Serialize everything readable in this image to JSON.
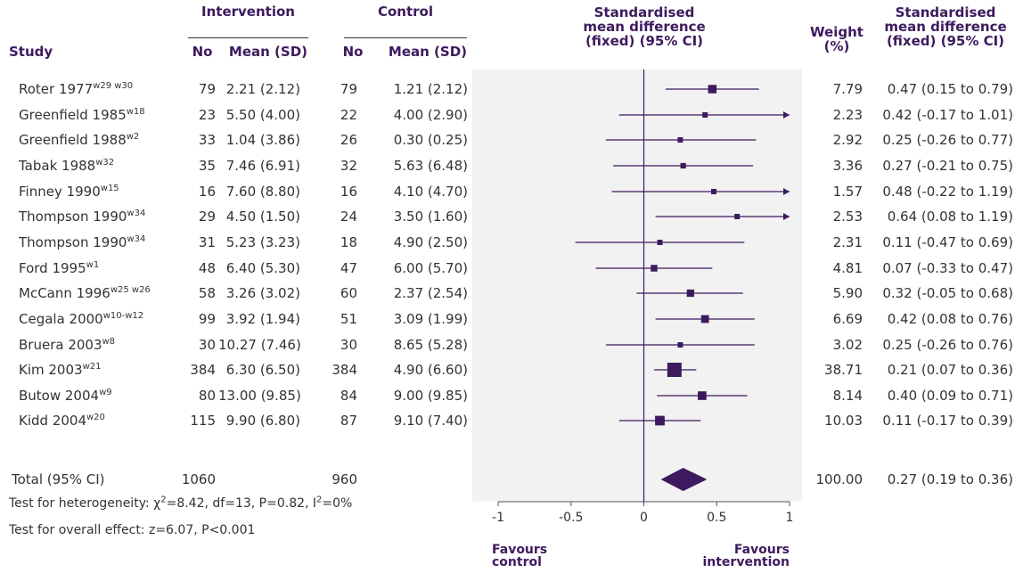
{
  "headers": {
    "intervention": "Intervention",
    "control": "Control",
    "study": "Study",
    "no": "No",
    "mean_sd": "Mean (SD)",
    "smd_plot": [
      "Standardised",
      "mean difference",
      "(fixed) (95% CI)"
    ],
    "weight": [
      "Weight",
      "(%)"
    ],
    "smd_col": [
      "Standardised",
      "mean difference",
      "(fixed) (95% CI)"
    ]
  },
  "chart_data": {
    "type": "forest",
    "xlim": [
      -1,
      1
    ],
    "xticks": [
      "-1",
      "-0.5",
      "0",
      "0.5",
      "1"
    ],
    "favours_left": [
      "Favours",
      "control"
    ],
    "favours_right": [
      "Favours",
      "intervention"
    ],
    "studies": [
      {
        "name": "Roter 1977",
        "sup": "w29 w30",
        "int_n": "79",
        "int_mean": "2.21 (2.12)",
        "ctl_n": "79",
        "ctl_mean": "1.21 (2.12)",
        "smd": 0.47,
        "lo": 0.15,
        "hi": 0.79,
        "weight": "7.79",
        "ci_text": "0.47 (0.15 to 0.79)",
        "w": 7.79
      },
      {
        "name": "Greenfield 1985",
        "sup": "w18",
        "int_n": "23",
        "int_mean": "5.50 (4.00)",
        "ctl_n": "22",
        "ctl_mean": "4.00 (2.90)",
        "smd": 0.42,
        "lo": -0.17,
        "hi": 1.01,
        "weight": "2.23",
        "ci_text": "0.42 (-0.17 to 1.01)",
        "w": 2.23
      },
      {
        "name": "Greenfield 1988",
        "sup": "w2",
        "int_n": "33",
        "int_mean": "1.04 (3.86)",
        "ctl_n": "26",
        "ctl_mean": "0.30 (0.25)",
        "smd": 0.25,
        "lo": -0.26,
        "hi": 0.77,
        "weight": "2.92",
        "ci_text": "0.25 (-0.26 to 0.77)",
        "w": 2.92
      },
      {
        "name": "Tabak 1988",
        "sup": "w32",
        "int_n": "35",
        "int_mean": "7.46 (6.91)",
        "ctl_n": "32",
        "ctl_mean": "5.63 (6.48)",
        "smd": 0.27,
        "lo": -0.21,
        "hi": 0.75,
        "weight": "3.36",
        "ci_text": "0.27 (-0.21 to 0.75)",
        "w": 3.36
      },
      {
        "name": "Finney 1990",
        "sup": "w15",
        "int_n": "16",
        "int_mean": "7.60 (8.80)",
        "ctl_n": "16",
        "ctl_mean": "4.10 (4.70)",
        "smd": 0.48,
        "lo": -0.22,
        "hi": 1.19,
        "weight": "1.57",
        "ci_text": "0.48 (-0.22 to 1.19)",
        "w": 1.57
      },
      {
        "name": "Thompson 1990",
        "sup": "w34",
        "int_n": "29",
        "int_mean": "4.50 (1.50)",
        "ctl_n": "24",
        "ctl_mean": "3.50 (1.60)",
        "smd": 0.64,
        "lo": 0.08,
        "hi": 1.19,
        "weight": "2.53",
        "ci_text": "0.64 (0.08 to 1.19)",
        "w": 2.53
      },
      {
        "name": "Thompson 1990",
        "sup": "w34",
        "int_n": "31",
        "int_mean": "5.23 (3.23)",
        "ctl_n": "18",
        "ctl_mean": "4.90 (2.50)",
        "smd": 0.11,
        "lo": -0.47,
        "hi": 0.69,
        "weight": "2.31",
        "ci_text": "0.11 (-0.47 to 0.69)",
        "w": 2.31
      },
      {
        "name": "Ford 1995",
        "sup": "w1",
        "int_n": "48",
        "int_mean": "6.40 (5.30)",
        "ctl_n": "47",
        "ctl_mean": "6.00 (5.70)",
        "smd": 0.07,
        "lo": -0.33,
        "hi": 0.47,
        "weight": "4.81",
        "ci_text": "0.07 (-0.33 to 0.47)",
        "w": 4.81
      },
      {
        "name": "McCann 1996",
        "sup": "w25 w26",
        "int_n": "58",
        "int_mean": "3.26 (3.02)",
        "ctl_n": "60",
        "ctl_mean": "2.37 (2.54)",
        "smd": 0.32,
        "lo": -0.05,
        "hi": 0.68,
        "weight": "5.90",
        "ci_text": "0.32 (-0.05 to 0.68)",
        "w": 5.9
      },
      {
        "name": "Cegala 2000",
        "sup": "w10-w12",
        "int_n": "99",
        "int_mean": "3.92 (1.94)",
        "ctl_n": "51",
        "ctl_mean": "3.09 (1.99)",
        "smd": 0.42,
        "lo": 0.08,
        "hi": 0.76,
        "weight": "6.69",
        "ci_text": "0.42 (0.08 to 0.76)",
        "w": 6.69
      },
      {
        "name": "Bruera 2003",
        "sup": "w8",
        "int_n": "30",
        "int_mean": "10.27 (7.46)",
        "ctl_n": "30",
        "ctl_mean": "8.65 (5.28)",
        "smd": 0.25,
        "lo": -0.26,
        "hi": 0.76,
        "weight": "3.02",
        "ci_text": "0.25 (-0.26 to 0.76)",
        "w": 3.02
      },
      {
        "name": "Kim 2003",
        "sup": "w21",
        "int_n": "384",
        "int_mean": "6.30 (6.50)",
        "ctl_n": "384",
        "ctl_mean": "4.90 (6.60)",
        "smd": 0.21,
        "lo": 0.07,
        "hi": 0.36,
        "weight": "38.71",
        "ci_text": "0.21 (0.07 to 0.36)",
        "w": 38.71
      },
      {
        "name": "Butow 2004",
        "sup": "w9",
        "int_n": "80",
        "int_mean": "13.00 (9.85)",
        "ctl_n": "84",
        "ctl_mean": "9.00 (9.85)",
        "smd": 0.4,
        "lo": 0.09,
        "hi": 0.71,
        "weight": "8.14",
        "ci_text": "0.40 (0.09 to 0.71)",
        "w": 8.14
      },
      {
        "name": "Kidd 2004",
        "sup": "w20",
        "int_n": "115",
        "int_mean": "9.90 (6.80)",
        "ctl_n": "87",
        "ctl_mean": "9.10 (7.40)",
        "smd": 0.11,
        "lo": -0.17,
        "hi": 0.39,
        "weight": "10.03",
        "ci_text": "0.11 (-0.17 to 0.39)",
        "w": 10.03
      }
    ],
    "total": {
      "label": "Total (95% CI)",
      "int_n": "1060",
      "ctl_n": "960",
      "smd": 0.27,
      "lo": 0.19,
      "hi": 0.36,
      "weight": "100.00",
      "ci_text": "0.27 (0.19 to 0.36)"
    }
  },
  "footer": {
    "heterogeneity_prefix": "Test for heterogeneity: ",
    "chi": "χ",
    "chi_sup": "2",
    "heterogeneity_mid": "=8.42, df=13, P=0.82, I",
    "i_sup": "2",
    "heterogeneity_end": "=0%",
    "overall": "Test for overall effect: z=6.07, P<0.001"
  },
  "colors": {
    "accent": "#3d1a5e",
    "plot_bg": "#f2f2f2"
  }
}
